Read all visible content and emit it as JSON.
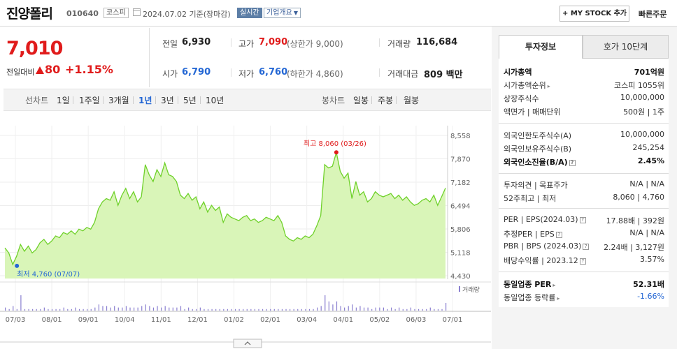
{
  "header": {
    "stock_name": "진양폴리",
    "stock_code": "010640",
    "market": "코스피",
    "date": "2024.07.02 기준(장마감)",
    "realtime_label": "실시간",
    "company_label": "기업개요",
    "mystock_label": "+ MY STOCK 추가",
    "quick_order_label": "빠른주문"
  },
  "summary": {
    "price": "7,010",
    "change_label": "전일대비",
    "change_value": "80",
    "change_pct": "+1.15%",
    "prev_close_label": "전일",
    "prev_close": "6,930",
    "high_label": "고가",
    "high": "7,090",
    "upper_limit": "(상한가 9,000)",
    "volume_label": "거래량",
    "volume": "116,684",
    "open_label": "시가",
    "open": "6,790",
    "low_label": "저가",
    "low": "6,760",
    "lower_limit": "(하한가 4,860)",
    "amount_label": "거래대금",
    "amount": "809",
    "amount_unit": "백만"
  },
  "period_tabs": {
    "line_chart_label": "선차트",
    "items": [
      "1일",
      "1주일",
      "3개월",
      "1년",
      "3년",
      "5년",
      "10년"
    ],
    "active": "1년",
    "candle_chart_label": "봉차트",
    "candle_items": [
      "일봉",
      "주봉",
      "월봉"
    ]
  },
  "chart_data": {
    "type": "area",
    "y_ticks": [
      "8,558",
      "7,870",
      "7,182",
      "6,494",
      "5,806",
      "5,118",
      "4,430"
    ],
    "ylim": [
      4430,
      8558
    ],
    "x_ticks": [
      "07/03",
      "08/01",
      "09/01",
      "10/04",
      "11/01",
      "12/01",
      "01/02",
      "02/01",
      "03/04",
      "04/01",
      "05/02",
      "06/03",
      "07/01"
    ],
    "values": [
      5250,
      5100,
      4760,
      5000,
      5350,
      5150,
      5300,
      5100,
      5200,
      5400,
      5500,
      5350,
      5450,
      5600,
      5550,
      5700,
      5650,
      5750,
      5650,
      5800,
      5750,
      5850,
      5800,
      6000,
      6400,
      6600,
      6700,
      6650,
      6900,
      6500,
      6800,
      7000,
      6700,
      6900,
      6600,
      6750,
      7700,
      7400,
      7200,
      7550,
      7350,
      7750,
      7400,
      7350,
      7200,
      6800,
      6700,
      6850,
      6650,
      6750,
      6400,
      6600,
      6300,
      6500,
      6350,
      6450,
      6000,
      6250,
      6150,
      6100,
      6050,
      6150,
      6200,
      6050,
      6100,
      6000,
      6050,
      6150,
      6100,
      6050,
      6200,
      6000,
      5600,
      5500,
      5450,
      5550,
      5500,
      5600,
      5550,
      5650,
      5900,
      6200,
      7700,
      7600,
      7650,
      8060,
      7500,
      7300,
      7450,
      6700,
      7200,
      6800,
      6900,
      6600,
      6700,
      6900,
      6800,
      6750,
      6800,
      6850,
      6700,
      6800,
      6650,
      6750,
      6600,
      6500,
      6550,
      6650,
      6700,
      6600,
      6800,
      6500,
      6750,
      7010
    ],
    "high_annotation": "최고 8,060 (03/26)",
    "low_annotation": "최저 4,760 (07/07)",
    "volume_legend": "거래량",
    "volume_bars": [
      2,
      1,
      3,
      1,
      10,
      1,
      1,
      1,
      1,
      1,
      2,
      1,
      1,
      1,
      1,
      2,
      1,
      1,
      2,
      1,
      1,
      1,
      1,
      2,
      4,
      3,
      3,
      2,
      3,
      2,
      2,
      3,
      2,
      2,
      2,
      3,
      4,
      3,
      2,
      3,
      2,
      3,
      2,
      2,
      2,
      3,
      1,
      2,
      1,
      1,
      2,
      1,
      1,
      1,
      1,
      1,
      1,
      1,
      1,
      1,
      1,
      1,
      1,
      1,
      1,
      1,
      1,
      1,
      1,
      1,
      1,
      1,
      1,
      1,
      1,
      1,
      1,
      1,
      1,
      1,
      2,
      3,
      10,
      6,
      4,
      6,
      3,
      2,
      3,
      4,
      2,
      3,
      2,
      2,
      1,
      2,
      2,
      2,
      1,
      2,
      1,
      2,
      1,
      1,
      2,
      1,
      1,
      1,
      1,
      2,
      1,
      1,
      1,
      5
    ],
    "area_color": "#d9f5b8",
    "line_color": "#6fd12a",
    "high_color": "#e01b1b",
    "low_color": "#2467d4"
  },
  "side": {
    "tab_invest": "투자정보",
    "tab_hoga": "호가 10단계",
    "rows": [
      {
        "k": "시가총액",
        "v": "701억원",
        "bold": true
      },
      {
        "k": "시가총액순위",
        "v": "코스피 1055위"
      },
      {
        "k": "상장주식수",
        "v": "10,000,000"
      },
      {
        "k": "액면가 | 매매단위",
        "v": "500원 | 1주"
      },
      {
        "k": "외국인한도주식수(A)",
        "v": "10,000,000"
      },
      {
        "k": "외국인보유주식수(B)",
        "v": "245,254"
      },
      {
        "k": "외국인소진율(B/A)",
        "v": "2.45%",
        "bold": true
      },
      {
        "k": "투자의견 | 목표주가",
        "v": "N/A | N/A"
      },
      {
        "k": "52주최고 | 최저",
        "v": "8,060 | 4,760"
      },
      {
        "k": "PER | EPS(2024.03)",
        "v": "17.88배 | 392원"
      },
      {
        "k": "추정PER | EPS",
        "v": "N/A | N/A"
      },
      {
        "k": "PBR | BPS (2024.03)",
        "v": "2.24배 | 3,127원"
      },
      {
        "k": "배당수익률 | 2023.12",
        "v": "3.57%"
      },
      {
        "k": "동일업종 PER",
        "v": "52.31배",
        "bold": true
      },
      {
        "k": "동일업종 등락률",
        "v": "-1.66%"
      }
    ]
  }
}
